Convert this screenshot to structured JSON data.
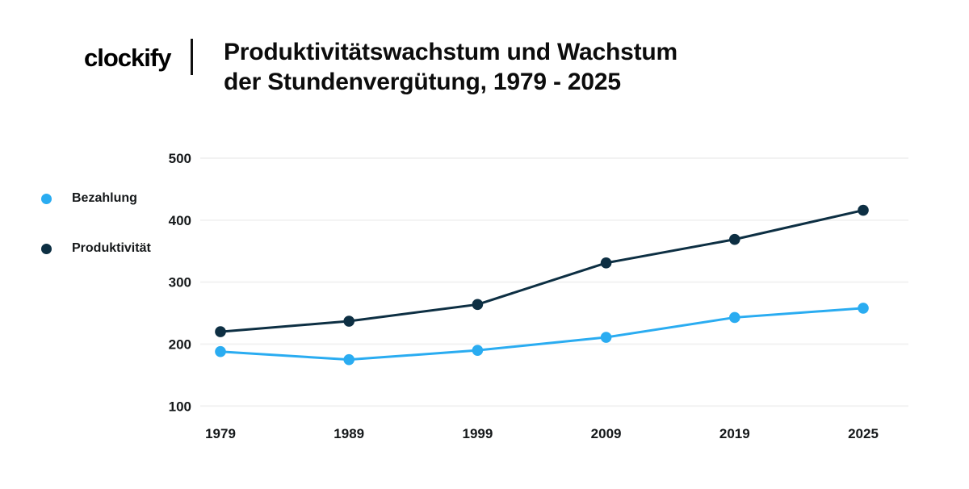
{
  "header": {
    "logo_text": "clockify",
    "title_lines": [
      "Produktivitätswachstum und Wachstum",
      "der Stundenvergütung, 1979 - 2025"
    ]
  },
  "legend": {
    "items": [
      {
        "label": "Bezahlung",
        "color": "#2aacf1"
      },
      {
        "label": "Produktivität",
        "color": "#0d2f43"
      }
    ]
  },
  "chart_data": {
    "type": "line",
    "title": "Produktivitätswachstum und Wachstum der Stundenvergütung, 1979 - 2025",
    "categories": [
      "1979",
      "1989",
      "1999",
      "2009",
      "2019",
      "2025"
    ],
    "series": [
      {
        "name": "Bezahlung",
        "color": "#2aacf1",
        "values": [
          188,
          175,
          190,
          211,
          243,
          258
        ]
      },
      {
        "name": "Produktivität",
        "color": "#0d2f43",
        "values": [
          220,
          237,
          264,
          331,
          369,
          416
        ]
      }
    ],
    "ylim": [
      100,
      500
    ],
    "yticks": [
      100,
      200,
      300,
      400,
      500
    ],
    "grid": "horizontal-only",
    "legend_position": "left",
    "xlabel": "",
    "ylabel": ""
  },
  "colors": {
    "brand_blue": "#2badf2",
    "grid_line": "#f2f2f2",
    "background": "#ffffff",
    "text": "#0c0c0c"
  }
}
